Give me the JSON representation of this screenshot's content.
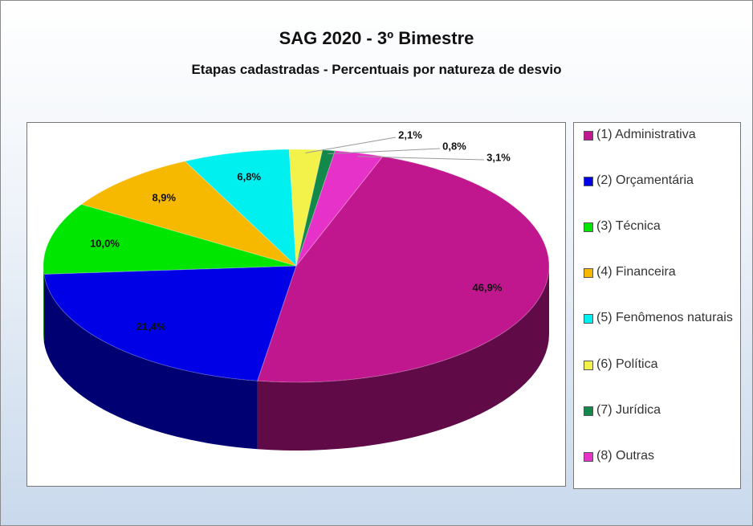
{
  "chart_data": {
    "type": "pie",
    "title": "SAG 2020 - 3º Bimestre",
    "subtitle": "Etapas cadastradas - Percentuais por natureza de desvio",
    "categories": [
      "(1) Administrativa",
      "(2) Orçamentária",
      "(3) Técnica",
      "(4) Financeira",
      "(5) Fenômenos naturais",
      "(6) Política",
      "(7) Jurídica",
      "(8) Outras"
    ],
    "values": [
      46.9,
      21.4,
      10.0,
      8.9,
      6.8,
      2.1,
      0.8,
      3.1
    ],
    "value_labels": [
      "46,9%",
      "21,4%",
      "10,0%",
      "8,9%",
      "6,8%",
      "2,1%",
      "0,8%",
      "3,1%"
    ],
    "colors": [
      "#c0168e",
      "#0000e6",
      "#00e600",
      "#f7b800",
      "#00f0f0",
      "#f2f24a",
      "#12894a",
      "#e632c8"
    ],
    "legend": "right"
  }
}
